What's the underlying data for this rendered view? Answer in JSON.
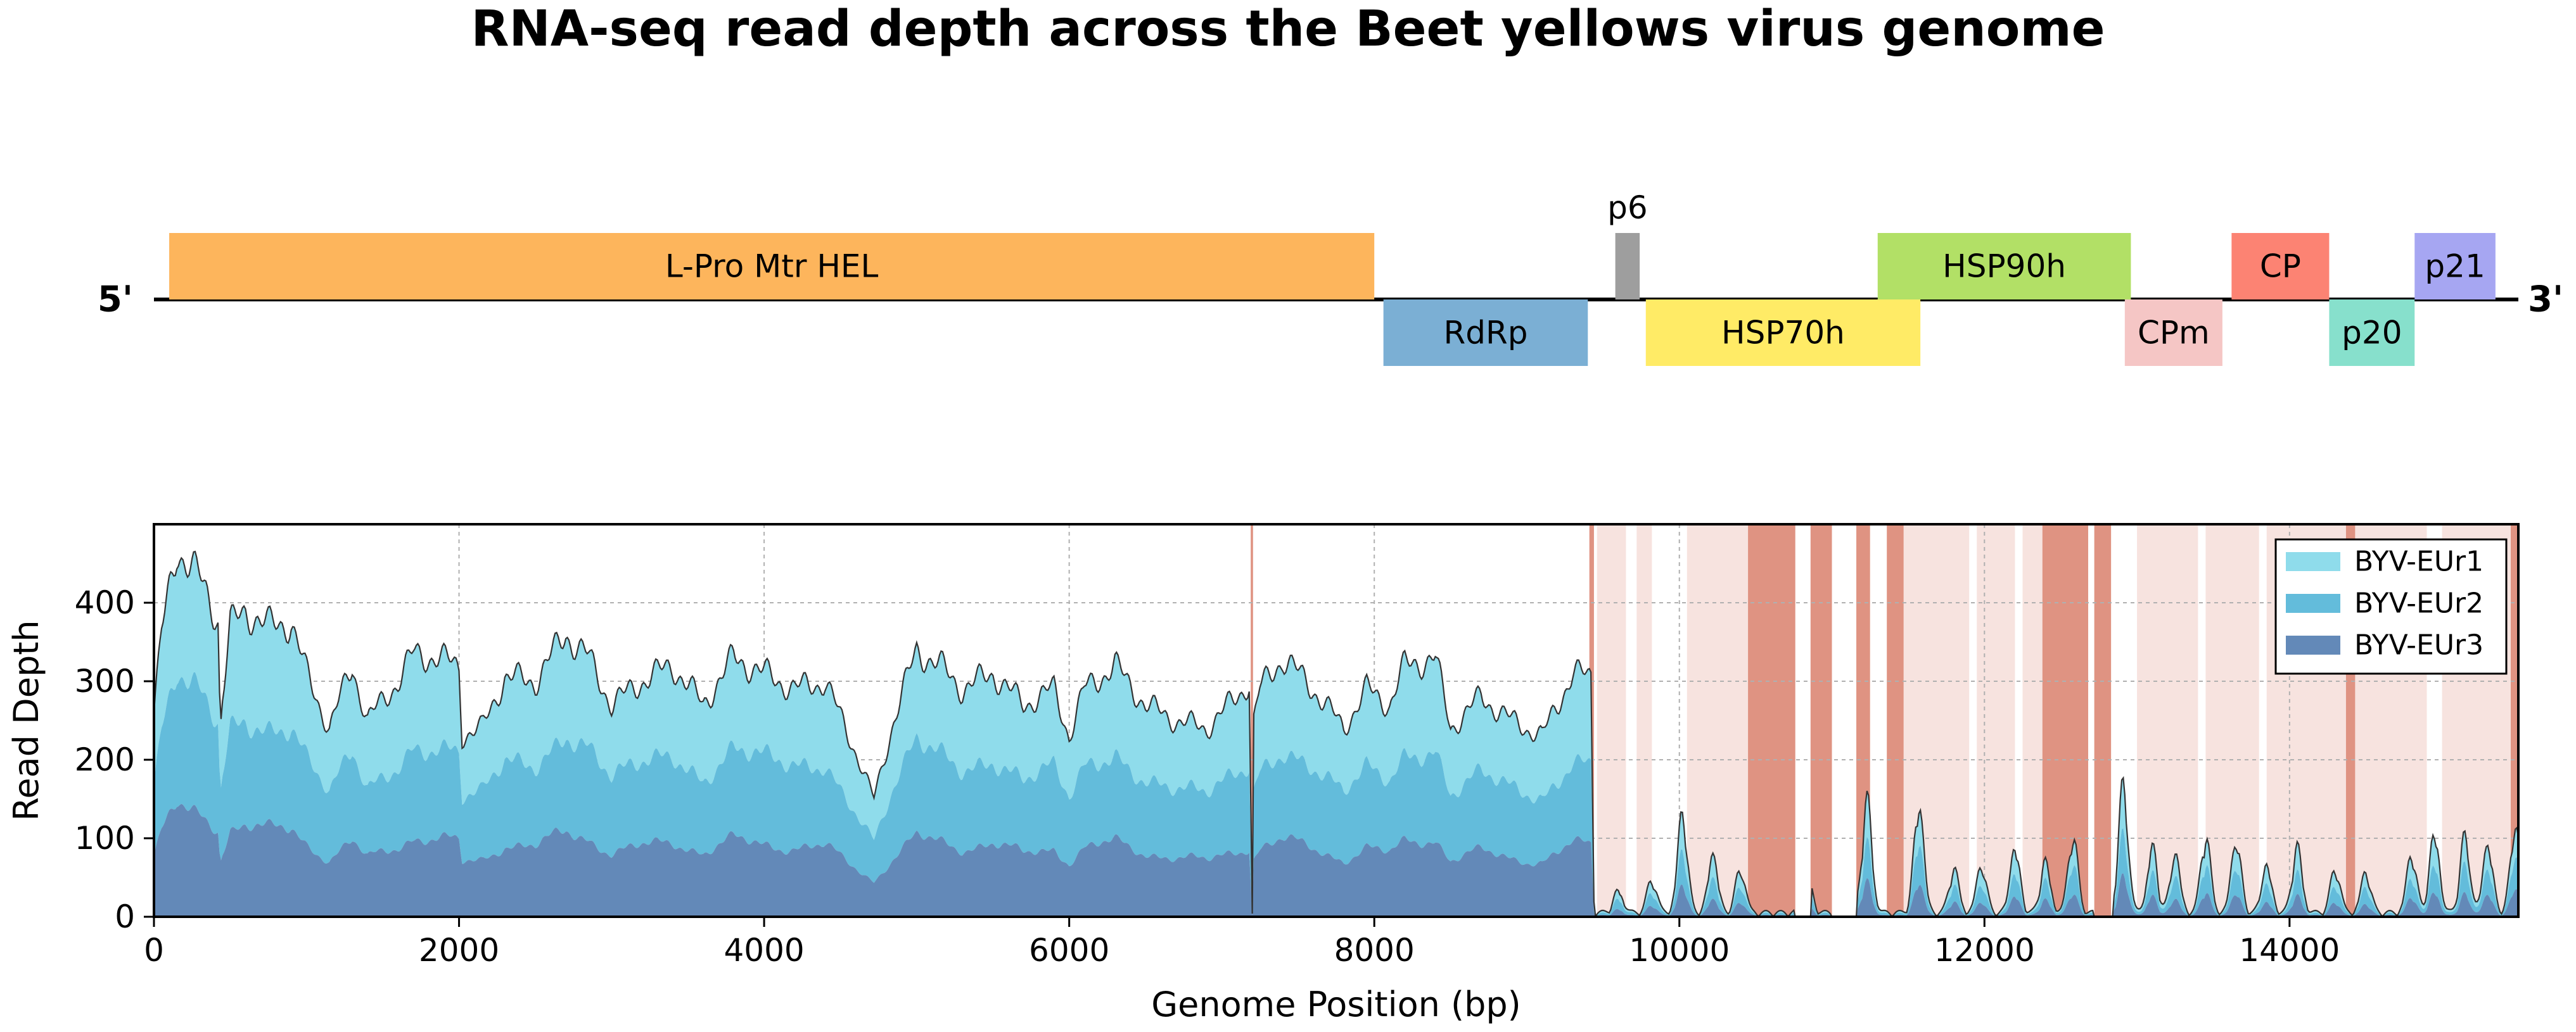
{
  "figure": {
    "title": "RNA-seq read depth across the Beet yellows virus genome"
  },
  "chart_data": [
    {
      "type": "genome_map",
      "ends": {
        "left": "5'",
        "right": "3'"
      },
      "x_range": [
        0,
        15500
      ],
      "genes": [
        {
          "name": "L-Pro Mtr HEL",
          "start": 100,
          "end": 8000,
          "strand": "top",
          "color": "#FDB55C",
          "label_position": "inside"
        },
        {
          "name": "RdRp",
          "start": 8060,
          "end": 9400,
          "strand": "bottom",
          "color": "#7BAFD4",
          "label_position": "inside"
        },
        {
          "name": "p6",
          "start": 9580,
          "end": 9740,
          "strand": "top",
          "color": "#9E9E9E",
          "label_position": "above"
        },
        {
          "name": "HSP70h",
          "start": 9780,
          "end": 11580,
          "strand": "bottom",
          "color": "#FFEB66",
          "label_position": "inside"
        },
        {
          "name": "HSP90h",
          "start": 11300,
          "end": 12960,
          "strand": "top",
          "color": "#B2E066",
          "label_position": "inside"
        },
        {
          "name": "CPm",
          "start": 12920,
          "end": 13560,
          "strand": "bottom",
          "color": "#F5C6C5",
          "label_position": "inside"
        },
        {
          "name": "CP",
          "start": 13620,
          "end": 14260,
          "strand": "top",
          "color": "#FC8373",
          "label_position": "inside"
        },
        {
          "name": "p20",
          "start": 14260,
          "end": 14820,
          "strand": "bottom",
          "color": "#87E0CC",
          "label_position": "inside"
        },
        {
          "name": "p21",
          "start": 14820,
          "end": 15350,
          "strand": "top",
          "color": "#A6A6F2",
          "label_position": "inside"
        }
      ]
    },
    {
      "type": "area",
      "stacked": true,
      "xlabel": "Genome Position (bp)",
      "ylabel": "Read Depth",
      "xlim": [
        0,
        15500
      ],
      "ylim": [
        0,
        500
      ],
      "x_ticks": [
        0,
        2000,
        4000,
        6000,
        8000,
        10000,
        12000,
        14000
      ],
      "y_ticks": [
        0,
        100,
        200,
        300,
        400
      ],
      "grid": true,
      "legend_position": "top-right",
      "series": [
        {
          "name": "BYV-EUr1",
          "color": "#8FDCEB"
        },
        {
          "name": "BYV-EUr2",
          "color": "#63BCDB"
        },
        {
          "name": "BYV-EUr3",
          "color": "#6389B8"
        }
      ],
      "coverage_profile": {
        "x": [
          0,
          50,
          150,
          300,
          420,
          435,
          450,
          500,
          600,
          750,
          900,
          1000,
          1150,
          1300,
          1400,
          1600,
          1700,
          1850,
          2000,
          2020,
          2150,
          2300,
          2500,
          2700,
          2850,
          3000,
          3200,
          3400,
          3600,
          3800,
          4000,
          4200,
          4400,
          4600,
          4720,
          4850,
          5000,
          5150,
          5300,
          5500,
          5700,
          5900,
          6000,
          6100,
          6300,
          6500,
          6700,
          6900,
          7100,
          7180,
          7200,
          7210,
          7250,
          7400,
          7600,
          7800,
          7950,
          8100,
          8200,
          8400,
          8500,
          8700,
          8900,
          9100,
          9300,
          9420,
          9440,
          9460
        ],
        "total": [
          260,
          360,
          470,
          430,
          380,
          240,
          280,
          370,
          390,
          370,
          375,
          310,
          240,
          320,
          250,
          300,
          335,
          330,
          320,
          230,
          240,
          305,
          300,
          360,
          330,
          270,
          300,
          320,
          270,
          330,
          310,
          290,
          300,
          210,
          150,
          250,
          340,
          320,
          290,
          310,
          270,
          290,
          230,
          290,
          320,
          270,
          250,
          240,
          280,
          300,
          4,
          250,
          290,
          330,
          290,
          240,
          290,
          270,
          320,
          330,
          240,
          280,
          250,
          230,
          310,
          305,
          20,
          20
        ],
        "eur3_fraction": 0.3,
        "eur2_fraction": 0.65
      },
      "low_region": {
        "start": 9450,
        "end": 15500,
        "peaks": [
          {
            "x": 9600,
            "value": 30
          },
          {
            "x": 9820,
            "value": 45
          },
          {
            "x": 10020,
            "value": 135
          },
          {
            "x": 10220,
            "value": 80
          },
          {
            "x": 10400,
            "value": 60
          },
          {
            "x": 10840,
            "value": 45
          },
          {
            "x": 11230,
            "value": 155
          },
          {
            "x": 11570,
            "value": 150
          },
          {
            "x": 11800,
            "value": 60
          },
          {
            "x": 11980,
            "value": 65
          },
          {
            "x": 12200,
            "value": 90
          },
          {
            "x": 12400,
            "value": 70
          },
          {
            "x": 12580,
            "value": 105
          },
          {
            "x": 12910,
            "value": 175
          },
          {
            "x": 13100,
            "value": 90
          },
          {
            "x": 13250,
            "value": 80
          },
          {
            "x": 13450,
            "value": 105
          },
          {
            "x": 13650,
            "value": 100
          },
          {
            "x": 13850,
            "value": 65
          },
          {
            "x": 14050,
            "value": 90
          },
          {
            "x": 14300,
            "value": 60
          },
          {
            "x": 14500,
            "value": 55
          },
          {
            "x": 14800,
            "value": 80
          },
          {
            "x": 14950,
            "value": 110
          },
          {
            "x": 15150,
            "value": 105
          },
          {
            "x": 15300,
            "value": 95
          },
          {
            "x": 15480,
            "value": 120
          }
        ],
        "gaps": [
          [
            10760,
            10860
          ],
          [
            11000,
            11160
          ],
          [
            12720,
            12840
          ]
        ]
      },
      "zero_coverage_highlights": {
        "color": "#D9806C",
        "dark": [
          [
            7190,
            7205
          ],
          [
            9410,
            9440
          ],
          [
            10450,
            10760
          ],
          [
            10860,
            11000
          ],
          [
            11160,
            11250
          ],
          [
            11360,
            11470
          ],
          [
            12380,
            12680
          ],
          [
            12720,
            12830
          ],
          [
            14370,
            14430
          ],
          [
            15450,
            15500
          ]
        ],
        "light": [
          [
            9460,
            9650
          ],
          [
            9720,
            9820
          ],
          [
            10050,
            10450
          ],
          [
            11470,
            11900
          ],
          [
            11950,
            12200
          ],
          [
            12250,
            12380
          ],
          [
            13000,
            13400
          ],
          [
            13450,
            13800
          ],
          [
            13850,
            14370
          ],
          [
            14430,
            14900
          ],
          [
            15000,
            15450
          ]
        ]
      }
    }
  ]
}
